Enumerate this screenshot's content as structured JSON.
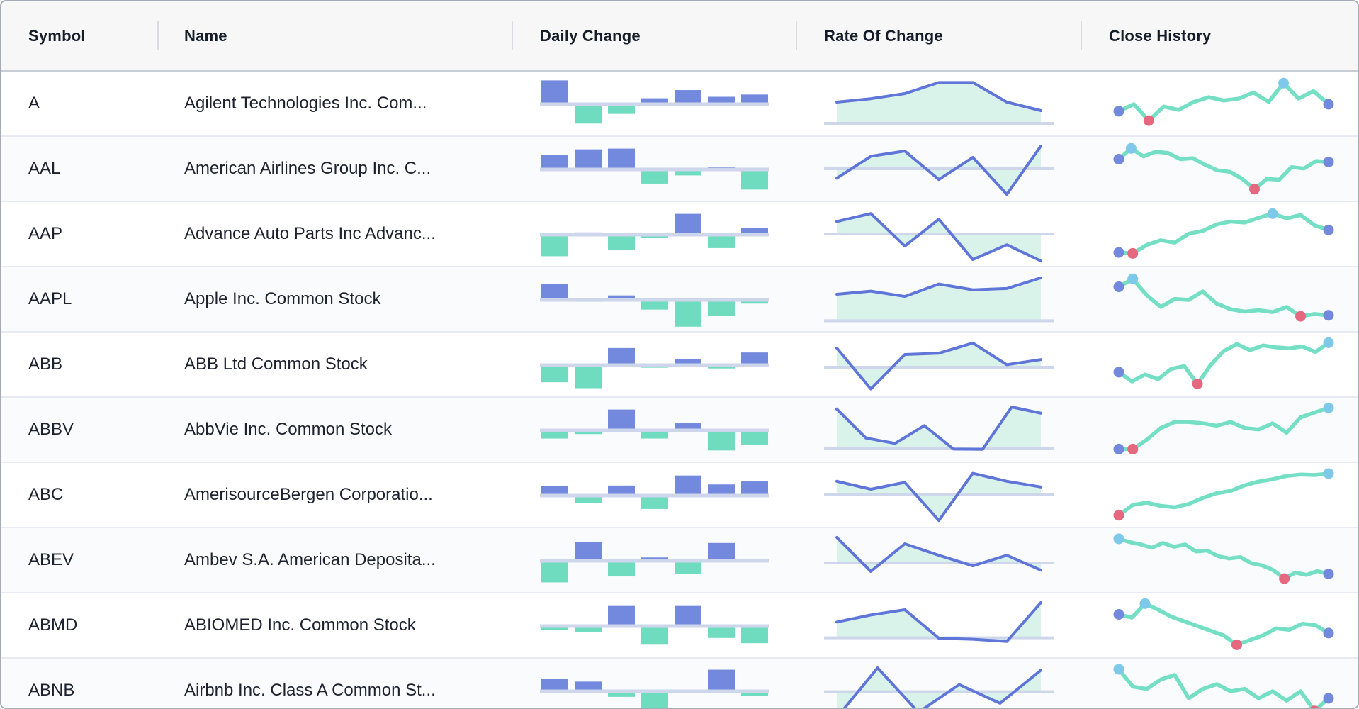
{
  "header": {
    "columns": [
      {
        "label": "Symbol"
      },
      {
        "label": "Name"
      },
      {
        "label": "Daily Change"
      },
      {
        "label": "Rate Of Change"
      },
      {
        "label": "Close History"
      }
    ]
  },
  "colors": {
    "bar_positive": "#7289de",
    "bar_negative": "#6fdcc0",
    "axis_line": "#cdd6ea",
    "roc_line": "#5f76d8",
    "roc_fill": "#d9f3eb",
    "close_line": "#74dfc4",
    "marker_start": "#7289de",
    "marker_end": "#7289de",
    "marker_max": "#7ec9ea",
    "marker_min": "#e5687f",
    "header_bg": "#f7f7f8",
    "row_alt_bg": "#fafbfc",
    "row_divider": "#e7eaf1",
    "outer_border": "#a6acb7"
  },
  "rows": [
    {
      "symbol": "A",
      "name": "Agilent Technologies Inc. Com...",
      "daily_change": {
        "type": "bar",
        "values": [
          3.2,
          -2.6,
          -1.3,
          0.8,
          1.9,
          1.0,
          1.3
        ]
      },
      "rate_of_change": {
        "type": "area",
        "baseline": 0.85,
        "values": [
          0.5,
          0.58,
          0.7,
          0.96,
          0.96,
          0.5,
          0.3
        ]
      },
      "close_history": {
        "type": "line",
        "values": [
          0.35,
          0.5,
          0.15,
          0.45,
          0.38,
          0.55,
          0.65,
          0.58,
          0.62,
          0.75,
          0.55,
          0.95,
          0.62,
          0.78,
          0.5
        ],
        "markers": [
          {
            "index": 0,
            "kind": "start"
          },
          {
            "index": 2,
            "kind": "min"
          },
          {
            "index": 11,
            "kind": "max"
          },
          {
            "index": 14,
            "kind": "end"
          }
        ]
      }
    },
    {
      "symbol": "AAL",
      "name": "American Airlines Group Inc. C...",
      "daily_change": {
        "type": "bar",
        "values": [
          2.0,
          2.7,
          2.8,
          -1.9,
          -0.8,
          0.35,
          -2.7
        ]
      },
      "rate_of_change": {
        "type": "area",
        "baseline": 0.5,
        "values": [
          -0.35,
          0.55,
          0.78,
          -0.4,
          0.5,
          -0.95,
          1.0
        ]
      },
      "close_history": {
        "type": "line",
        "values": [
          0.72,
          0.95,
          0.78,
          0.88,
          0.85,
          0.72,
          0.74,
          0.6,
          0.48,
          0.45,
          0.3,
          0.08,
          0.3,
          0.28,
          0.55,
          0.52,
          0.68,
          0.66
        ],
        "markers": [
          {
            "index": 0,
            "kind": "start"
          },
          {
            "index": 1,
            "kind": "max"
          },
          {
            "index": 11,
            "kind": "min"
          },
          {
            "index": 17,
            "kind": "end"
          }
        ]
      }
    },
    {
      "symbol": "AAP",
      "name": "Advance Auto Parts Inc Advanc...",
      "daily_change": {
        "type": "bar",
        "values": [
          -2.9,
          0.3,
          -2.1,
          -0.45,
          2.8,
          -1.8,
          0.9
        ]
      },
      "rate_of_change": {
        "type": "area",
        "baseline": 0.5,
        "values": [
          0.55,
          0.9,
          -0.45,
          0.65,
          -0.95,
          -0.4,
          -1.0
        ]
      },
      "close_history": {
        "type": "line",
        "values": [
          0.12,
          0.1,
          0.28,
          0.38,
          0.33,
          0.52,
          0.58,
          0.72,
          0.78,
          0.76,
          0.86,
          0.95,
          0.85,
          0.92,
          0.7,
          0.6
        ],
        "markers": [
          {
            "index": 0,
            "kind": "start"
          },
          {
            "index": 1,
            "kind": "min"
          },
          {
            "index": 11,
            "kind": "max"
          },
          {
            "index": 15,
            "kind": "end"
          }
        ]
      }
    },
    {
      "symbol": "AAPL",
      "name": "Apple Inc. Common Stock",
      "daily_change": {
        "type": "bar",
        "values": [
          2.1,
          -0.25,
          0.6,
          -1.3,
          -3.6,
          -2.1,
          -0.5
        ]
      },
      "rate_of_change": {
        "type": "area",
        "baseline": 0.88,
        "values": [
          0.6,
          0.67,
          0.55,
          0.83,
          0.7,
          0.73,
          0.97
        ]
      },
      "close_history": {
        "type": "line",
        "values": [
          0.78,
          0.95,
          0.6,
          0.35,
          0.52,
          0.5,
          0.68,
          0.42,
          0.3,
          0.25,
          0.28,
          0.24,
          0.35,
          0.15,
          0.2,
          0.17
        ],
        "markers": [
          {
            "index": 0,
            "kind": "start"
          },
          {
            "index": 1,
            "kind": "max"
          },
          {
            "index": 13,
            "kind": "min"
          },
          {
            "index": 15,
            "kind": "end"
          }
        ]
      }
    },
    {
      "symbol": "ABB",
      "name": "ABB Ltd Common Stock",
      "daily_change": {
        "type": "bar",
        "values": [
          -2.3,
          -3.1,
          2.3,
          -0.35,
          0.8,
          -0.45,
          1.7
        ]
      },
      "rate_of_change": {
        "type": "area",
        "baseline": 0.55,
        "values": [
          0.75,
          -0.9,
          0.5,
          0.55,
          0.95,
          0.1,
          0.3
        ]
      },
      "close_history": {
        "type": "line",
        "values": [
          0.35,
          0.15,
          0.3,
          0.2,
          0.42,
          0.48,
          0.1,
          0.5,
          0.8,
          0.95,
          0.82,
          0.92,
          0.88,
          0.86,
          0.9,
          0.78,
          0.98
        ],
        "markers": [
          {
            "index": 0,
            "kind": "start"
          },
          {
            "index": 6,
            "kind": "min"
          },
          {
            "index": 16,
            "kind": "max"
          }
        ]
      }
    },
    {
      "symbol": "ABBV",
      "name": "AbbVie Inc. Common Stock",
      "daily_change": {
        "type": "bar",
        "values": [
          -1.1,
          -0.5,
          2.8,
          -1.1,
          0.95,
          -2.7,
          -1.9
        ]
      },
      "rate_of_change": {
        "type": "area",
        "baseline": 0.83,
        "values": [
          0.95,
          0.25,
          0.12,
          0.55,
          -0.08,
          -0.12,
          1.0,
          0.85
        ]
      },
      "close_history": {
        "type": "line",
        "values": [
          0.1,
          0.1,
          0.3,
          0.55,
          0.68,
          0.68,
          0.65,
          0.6,
          0.68,
          0.55,
          0.52,
          0.65,
          0.45,
          0.78,
          0.88,
          0.98
        ],
        "markers": [
          {
            "index": 0,
            "kind": "start"
          },
          {
            "index": 1,
            "kind": "min"
          },
          {
            "index": 15,
            "kind": "max"
          }
        ]
      }
    },
    {
      "symbol": "ABC",
      "name": "AmerisourceBergen Corporatio...",
      "daily_change": {
        "type": "bar",
        "values": [
          1.3,
          -1.0,
          1.35,
          -1.8,
          2.7,
          1.5,
          1.9
        ]
      },
      "rate_of_change": {
        "type": "area",
        "baseline": 0.5,
        "values": [
          0.6,
          0.25,
          0.55,
          -0.95,
          0.95,
          0.6,
          0.35
        ]
      },
      "close_history": {
        "type": "line",
        "values": [
          0.08,
          0.3,
          0.35,
          0.28,
          0.25,
          0.32,
          0.45,
          0.55,
          0.6,
          0.72,
          0.8,
          0.85,
          0.92,
          0.95,
          0.94,
          0.97
        ],
        "markers": [
          {
            "index": 0,
            "kind": "min"
          },
          {
            "index": 15,
            "kind": "max"
          }
        ]
      }
    },
    {
      "symbol": "ABEV",
      "name": "Ambev S.A. American Deposita...",
      "daily_change": {
        "type": "bar",
        "values": [
          -2.9,
          2.5,
          -2.1,
          0.45,
          -1.8,
          2.4,
          -0.2
        ]
      },
      "rate_of_change": {
        "type": "area",
        "baseline": 0.55,
        "values": [
          1.0,
          -0.35,
          0.75,
          0.3,
          -0.12,
          0.3,
          -0.3
        ]
      },
      "close_history": {
        "type": "line",
        "values": [
          0.97,
          0.9,
          0.85,
          0.78,
          0.88,
          0.8,
          0.85,
          0.7,
          0.72,
          0.6,
          0.55,
          0.58,
          0.45,
          0.4,
          0.3,
          0.12,
          0.25,
          0.2,
          0.28,
          0.22
        ],
        "markers": [
          {
            "index": 0,
            "kind": "max"
          },
          {
            "index": 15,
            "kind": "min"
          },
          {
            "index": 19,
            "kind": "end"
          }
        ]
      }
    },
    {
      "symbol": "ABMD",
      "name": "ABIOMED Inc. Common Stock",
      "daily_change": {
        "type": "bar",
        "values": [
          -0.5,
          -0.8,
          2.7,
          -2.5,
          2.7,
          -1.6,
          -2.3
        ]
      },
      "rate_of_change": {
        "type": "area",
        "baseline": 0.72,
        "values": [
          0.45,
          0.65,
          0.8,
          -0.03,
          -0.1,
          -0.25,
          1.0
        ]
      },
      "close_history": {
        "type": "line",
        "values": [
          0.75,
          0.68,
          0.98,
          0.85,
          0.7,
          0.6,
          0.5,
          0.4,
          0.3,
          0.1,
          0.2,
          0.3,
          0.45,
          0.42,
          0.55,
          0.52,
          0.35
        ],
        "markers": [
          {
            "index": 0,
            "kind": "start"
          },
          {
            "index": 2,
            "kind": "max"
          },
          {
            "index": 9,
            "kind": "min"
          },
          {
            "index": 16,
            "kind": "end"
          }
        ]
      }
    },
    {
      "symbol": "ABNB",
      "name": "Airbnb Inc. Class A Common St...",
      "daily_change": {
        "type": "bar",
        "values": [
          1.7,
          1.3,
          -0.75,
          -2.4,
          0,
          2.9,
          -0.65
        ]
      },
      "rate_of_change": {
        "type": "area",
        "baseline": 0.52,
        "values": [
          -1.0,
          1.0,
          -0.8,
          0.3,
          -0.45,
          0.9
        ]
      },
      "close_history": {
        "type": "line",
        "values": [
          0.97,
          0.6,
          0.55,
          0.75,
          0.85,
          0.35,
          0.55,
          0.65,
          0.5,
          0.55,
          0.35,
          0.5,
          0.3,
          0.5,
          0.08,
          0.35
        ],
        "markers": [
          {
            "index": 0,
            "kind": "max"
          },
          {
            "index": 14,
            "kind": "min"
          },
          {
            "index": 15,
            "kind": "end"
          }
        ]
      }
    }
  ]
}
